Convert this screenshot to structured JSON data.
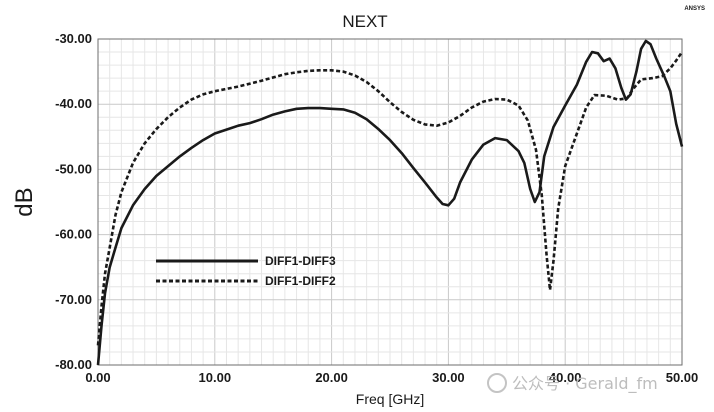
{
  "chart_data": {
    "type": "line",
    "title": "NEXT",
    "brand": "ANSYS",
    "xlabel": "Freq [GHz]",
    "ylabel": "dB",
    "xlim": [
      0,
      50
    ],
    "ylim": [
      -80,
      -30
    ],
    "x_ticks": [
      "0.00",
      "10.00",
      "20.00",
      "30.00",
      "40.00",
      "50.00"
    ],
    "y_ticks": [
      "-30.00",
      "-40.00",
      "-50.00",
      "-60.00",
      "-70.00",
      "-80.00"
    ],
    "grid": true,
    "legend_position": "left",
    "series": [
      {
        "name": "DIFF1-DIFF3",
        "style": "solid",
        "color": "#1a1a1a",
        "points": [
          [
            0,
            -80
          ],
          [
            0.3,
            -74
          ],
          [
            0.6,
            -69
          ],
          [
            1,
            -65
          ],
          [
            1.5,
            -62
          ],
          [
            2,
            -59
          ],
          [
            3,
            -55.5
          ],
          [
            4,
            -53
          ],
          [
            5,
            -51
          ],
          [
            6,
            -49.5
          ],
          [
            7,
            -48
          ],
          [
            8,
            -46.7
          ],
          [
            9,
            -45.5
          ],
          [
            10,
            -44.5
          ],
          [
            11,
            -43.9
          ],
          [
            12,
            -43.3
          ],
          [
            13,
            -42.9
          ],
          [
            14,
            -42.3
          ],
          [
            15,
            -41.6
          ],
          [
            16,
            -41.1
          ],
          [
            17,
            -40.7
          ],
          [
            18,
            -40.6
          ],
          [
            19,
            -40.6
          ],
          [
            20,
            -40.7
          ],
          [
            21,
            -40.8
          ],
          [
            22,
            -41.3
          ],
          [
            23,
            -42.3
          ],
          [
            24,
            -43.8
          ],
          [
            25,
            -45.5
          ],
          [
            26,
            -47.5
          ],
          [
            27,
            -49.8
          ],
          [
            28,
            -52
          ],
          [
            29,
            -54.3
          ],
          [
            29.5,
            -55.3
          ],
          [
            30,
            -55.5
          ],
          [
            30.5,
            -54.5
          ],
          [
            31,
            -52
          ],
          [
            32,
            -48.5
          ],
          [
            33,
            -46.2
          ],
          [
            34,
            -45.2
          ],
          [
            35,
            -45.5
          ],
          [
            36,
            -47.2
          ],
          [
            36.5,
            -49
          ],
          [
            37,
            -53
          ],
          [
            37.4,
            -55
          ],
          [
            37.8,
            -53.5
          ],
          [
            38.2,
            -48
          ],
          [
            39,
            -43.5
          ],
          [
            40,
            -40.2
          ],
          [
            41,
            -37
          ],
          [
            41.8,
            -33.5
          ],
          [
            42.3,
            -32
          ],
          [
            42.8,
            -32.2
          ],
          [
            43.3,
            -33.4
          ],
          [
            43.8,
            -33
          ],
          [
            44.3,
            -34.5
          ],
          [
            44.8,
            -37.5
          ],
          [
            45.2,
            -39.3
          ],
          [
            45.6,
            -38.5
          ],
          [
            46.1,
            -35
          ],
          [
            46.5,
            -31.5
          ],
          [
            46.9,
            -30.3
          ],
          [
            47.3,
            -30.8
          ],
          [
            47.8,
            -33
          ],
          [
            48.5,
            -35.8
          ],
          [
            49,
            -38
          ],
          [
            49.5,
            -43
          ],
          [
            50,
            -46.5
          ]
        ]
      },
      {
        "name": "DIFF1-DIFF2",
        "style": "dashed",
        "color": "#1a1a1a",
        "points": [
          [
            0,
            -77
          ],
          [
            0.3,
            -71
          ],
          [
            0.6,
            -66
          ],
          [
            1,
            -62
          ],
          [
            1.5,
            -57
          ],
          [
            2,
            -53.5
          ],
          [
            3,
            -49
          ],
          [
            4,
            -46
          ],
          [
            5,
            -43.8
          ],
          [
            6,
            -42
          ],
          [
            7,
            -40.5
          ],
          [
            8,
            -39.3
          ],
          [
            9,
            -38.5
          ],
          [
            10,
            -38
          ],
          [
            12,
            -37.3
          ],
          [
            14,
            -36.4
          ],
          [
            16,
            -35.4
          ],
          [
            17,
            -35.1
          ],
          [
            18,
            -34.9
          ],
          [
            19,
            -34.8
          ],
          [
            20,
            -34.8
          ],
          [
            21,
            -35
          ],
          [
            22,
            -35.6
          ],
          [
            23,
            -36.6
          ],
          [
            24,
            -38
          ],
          [
            25,
            -39.7
          ],
          [
            26,
            -41.2
          ],
          [
            27,
            -42.4
          ],
          [
            28,
            -43.1
          ],
          [
            29,
            -43.3
          ],
          [
            30,
            -42.8
          ],
          [
            31,
            -41.8
          ],
          [
            32,
            -40.5
          ],
          [
            33,
            -39.6
          ],
          [
            34,
            -39.2
          ],
          [
            35,
            -39.3
          ],
          [
            36,
            -40.2
          ],
          [
            36.8,
            -42.5
          ],
          [
            37.5,
            -47
          ],
          [
            38,
            -54
          ],
          [
            38.4,
            -63
          ],
          [
            38.7,
            -68.5
          ],
          [
            39,
            -64
          ],
          [
            39.4,
            -56
          ],
          [
            40,
            -49.5
          ],
          [
            41,
            -44.5
          ],
          [
            41.8,
            -40.5
          ],
          [
            42.5,
            -38.6
          ],
          [
            43.5,
            -38.7
          ],
          [
            44.5,
            -39.3
          ],
          [
            45.3,
            -39.1
          ],
          [
            45.8,
            -37.7
          ],
          [
            46.5,
            -36.2
          ],
          [
            47.5,
            -36
          ],
          [
            48.3,
            -35.7
          ],
          [
            49,
            -34.5
          ],
          [
            49.5,
            -33.3
          ],
          [
            50,
            -32
          ]
        ]
      }
    ]
  },
  "watermark": {
    "text": "公众号 · Gerald_fm"
  }
}
